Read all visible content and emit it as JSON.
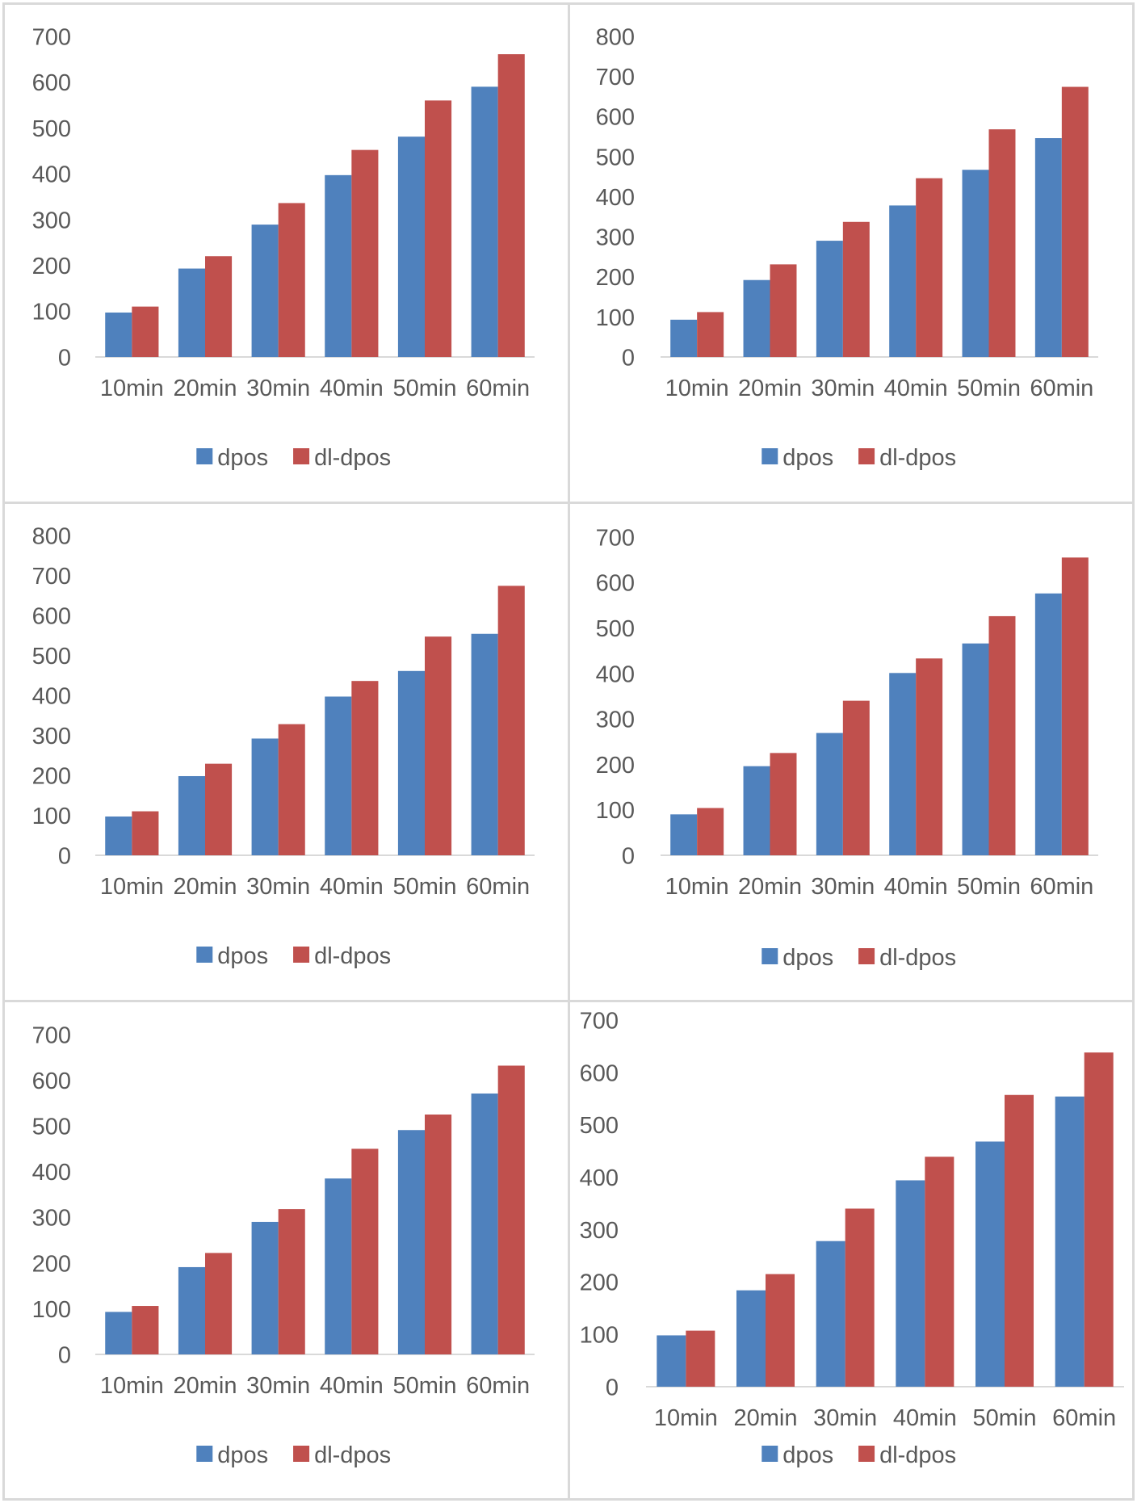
{
  "colors": {
    "dpos": "#4f81bd",
    "dl_dpos": "#c0504d",
    "axis": "#d9d9d9",
    "text": "#595959"
  },
  "chart_data": [
    {
      "type": "bar",
      "categories": [
        "10min",
        "20min",
        "30min",
        "40min",
        "50min",
        "60min"
      ],
      "series": [
        {
          "name": "dpos",
          "values": [
            97,
            193,
            289,
            397,
            481,
            590
          ]
        },
        {
          "name": "dl-dpos",
          "values": [
            110,
            220,
            336,
            452,
            560,
            661
          ]
        }
      ],
      "ylim": [
        0,
        700
      ],
      "yticks": [
        0,
        100,
        200,
        300,
        400,
        500,
        600,
        700
      ],
      "legend": "bottom",
      "grid": false
    },
    {
      "type": "bar",
      "categories": [
        "10min",
        "20min",
        "30min",
        "40min",
        "50min",
        "60min"
      ],
      "series": [
        {
          "name": "dpos",
          "values": [
            93,
            192,
            290,
            378,
            467,
            546
          ]
        },
        {
          "name": "dl-dpos",
          "values": [
            112,
            231,
            337,
            446,
            568,
            674
          ]
        }
      ],
      "ylim": [
        0,
        800
      ],
      "yticks": [
        0,
        100,
        200,
        300,
        400,
        500,
        600,
        700,
        800
      ],
      "legend": "bottom",
      "grid": false
    },
    {
      "type": "bar",
      "categories": [
        "10min",
        "20min",
        "30min",
        "40min",
        "50min",
        "60min"
      ],
      "series": [
        {
          "name": "dpos",
          "values": [
            97,
            198,
            292,
            397,
            461,
            554
          ]
        },
        {
          "name": "dl-dpos",
          "values": [
            110,
            229,
            328,
            436,
            547,
            674
          ]
        }
      ],
      "ylim": [
        0,
        800
      ],
      "yticks": [
        0,
        100,
        200,
        300,
        400,
        500,
        600,
        700,
        800
      ],
      "legend": "bottom",
      "grid": false
    },
    {
      "type": "bar",
      "categories": [
        "10min",
        "20min",
        "30min",
        "40min",
        "50min",
        "60min"
      ],
      "series": [
        {
          "name": "dpos",
          "values": [
            90,
            196,
            269,
            401,
            466,
            576
          ]
        },
        {
          "name": "dl-dpos",
          "values": [
            104,
            225,
            340,
            433,
            526,
            655
          ]
        }
      ],
      "ylim": [
        0,
        700
      ],
      "yticks": [
        0,
        100,
        200,
        300,
        400,
        500,
        600,
        700
      ],
      "legend": "bottom",
      "grid": false
    },
    {
      "type": "bar",
      "categories": [
        "10min",
        "20min",
        "30min",
        "40min",
        "50min",
        "60min"
      ],
      "series": [
        {
          "name": "dpos",
          "values": [
            93,
            191,
            290,
            385,
            491,
            571
          ]
        },
        {
          "name": "dl-dpos",
          "values": [
            106,
            222,
            318,
            450,
            525,
            632
          ]
        }
      ],
      "ylim": [
        0,
        700
      ],
      "yticks": [
        0,
        100,
        200,
        300,
        400,
        500,
        600,
        700
      ],
      "legend": "bottom",
      "grid": false
    },
    {
      "type": "bar",
      "categories": [
        "10min",
        "20min",
        "30min",
        "40min",
        "50min",
        "60min"
      ],
      "series": [
        {
          "name": "dpos",
          "values": [
            98,
            184,
            278,
            394,
            468,
            554
          ]
        },
        {
          "name": "dl-dpos",
          "values": [
            107,
            215,
            340,
            439,
            557,
            638
          ]
        }
      ],
      "ylim": [
        0,
        700
      ],
      "yticks": [
        0,
        100,
        200,
        300,
        400,
        500,
        600,
        700
      ],
      "legend": "bottom",
      "grid": false
    }
  ]
}
